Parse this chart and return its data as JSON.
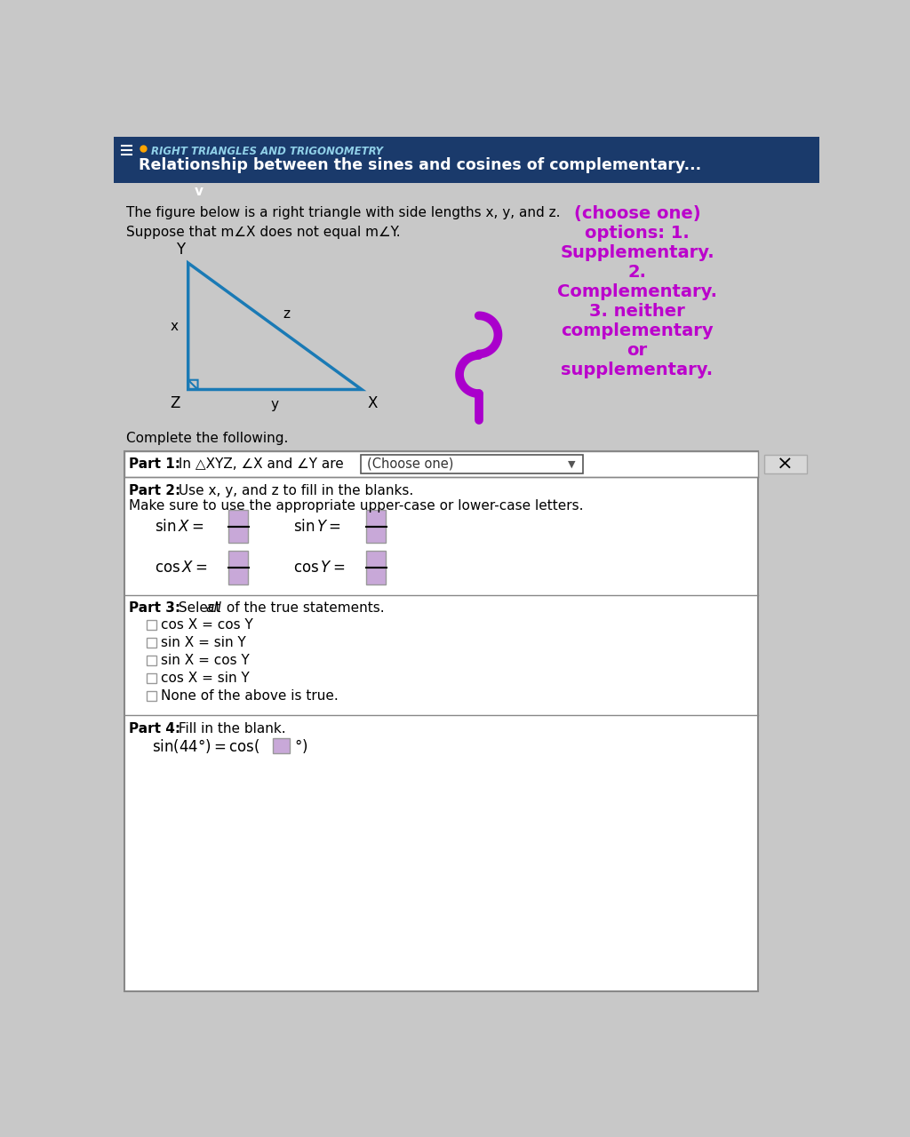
{
  "header_bg": "#1a3a6b",
  "header_text1": "RIGHT TRIANGLES AND TRIGONOMETRY",
  "header_text2": "Relationship between the sines and cosines of complementary...",
  "body_bg": "#c8c8c8",
  "intro_line1_plain": "The figure below is a right triangle with side lengths x, y, and z.",
  "intro_line2": "Suppose that m∠X does not equal m∠Y.",
  "choose_one_text": "(choose one)\noptions: 1.\nSupplementary.\n2.\nComplementary.\n3. neither\ncomplementary\nor\nsupplementary.",
  "choose_one_color": "#bb00cc",
  "complete_text": "Complete the following.",
  "part3_options": [
    "cos X = cos Y",
    "sin X = sin Y",
    "sin X = cos Y",
    "cos X = sin Y",
    "None of the above is true."
  ],
  "triangle_color": "#1a7ab5",
  "input_box_color": "#c8a8d8",
  "purple_curve_color": "#aa00cc",
  "panel_bg": "#ffffff",
  "panel_border": "#888888",
  "teal_btn_color": "#1aafaf"
}
